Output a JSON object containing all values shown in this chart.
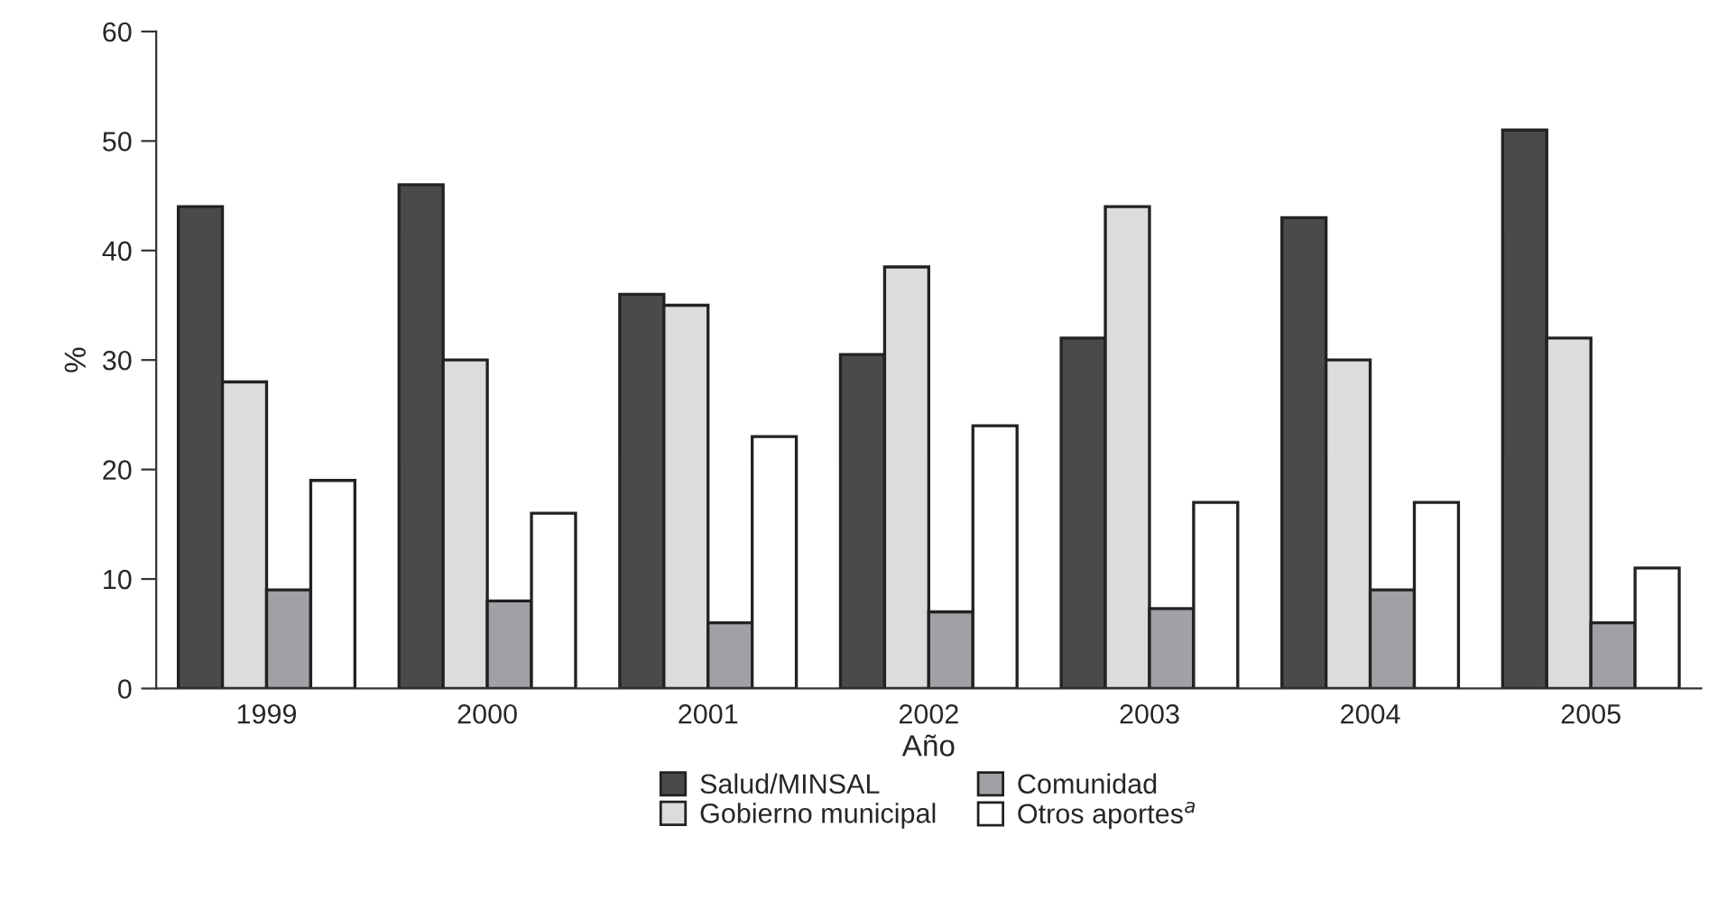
{
  "chart_data": {
    "type": "bar",
    "xlabel": "Año",
    "ylabel": "%",
    "categories": [
      "1999",
      "2000",
      "2001",
      "2002",
      "2003",
      "2004",
      "2005"
    ],
    "series": [
      {
        "name": "Salud/MINSAL",
        "color": "#4a4a4c",
        "values": [
          44,
          46,
          36,
          30.5,
          32,
          43,
          51
        ]
      },
      {
        "name": "Gobierno municipal",
        "color": "#dcdcde",
        "values": [
          28,
          30,
          35,
          38.5,
          44,
          30,
          32
        ]
      },
      {
        "name": "Comunidad",
        "color": "#a0a1a5",
        "values": [
          9,
          8,
          6,
          7,
          7.3,
          9,
          6
        ]
      },
      {
        "name": "Otros aportes$^{a}$",
        "color": "#ffffff",
        "values": [
          19,
          16,
          23,
          24,
          17,
          17,
          11
        ]
      }
    ],
    "ylim": [
      0,
      60
    ],
    "yticks": [
      0,
      10,
      20,
      30,
      40,
      50,
      60
    ],
    "grid": false,
    "legend": "bottom"
  }
}
